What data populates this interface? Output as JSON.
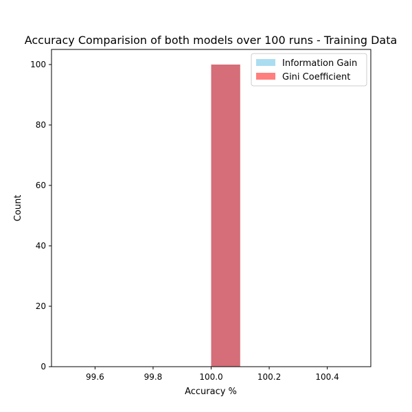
{
  "chart_data": {
    "type": "bar",
    "chart_kind": "histogram",
    "title": "Accuracy Comparision of both models over 100 runs - Training Data",
    "xlabel": "Accuracy %",
    "ylabel": "Count",
    "xlim": [
      99.45,
      100.55
    ],
    "ylim": [
      0,
      105
    ],
    "xticks": [
      "99.6",
      "99.8",
      "100.0",
      "100.2",
      "100.4"
    ],
    "xtick_values": [
      99.6,
      99.8,
      100.0,
      100.2,
      100.4
    ],
    "yticks": [
      "0",
      "20",
      "40",
      "60",
      "80",
      "100"
    ],
    "ytick_values": [
      0,
      20,
      40,
      60,
      80,
      100
    ],
    "legend_position": "top-right",
    "series": [
      {
        "name": "Information Gain",
        "color": "#87ceeb",
        "opacity": 0.7,
        "bins": [
          {
            "x0": 100.0,
            "x1": 100.1,
            "count": 100
          }
        ]
      },
      {
        "name": "Gini Coefficient",
        "color": "#ff0000",
        "opacity": 0.5,
        "bins": [
          {
            "x0": 100.0,
            "x1": 100.1,
            "count": 100
          }
        ]
      }
    ],
    "legend": [
      {
        "label": "Information Gain",
        "color": "#87ceeb",
        "opacity": 0.7
      },
      {
        "label": "Gini Coefficient",
        "color": "#ff0000",
        "opacity": 0.5
      }
    ]
  }
}
